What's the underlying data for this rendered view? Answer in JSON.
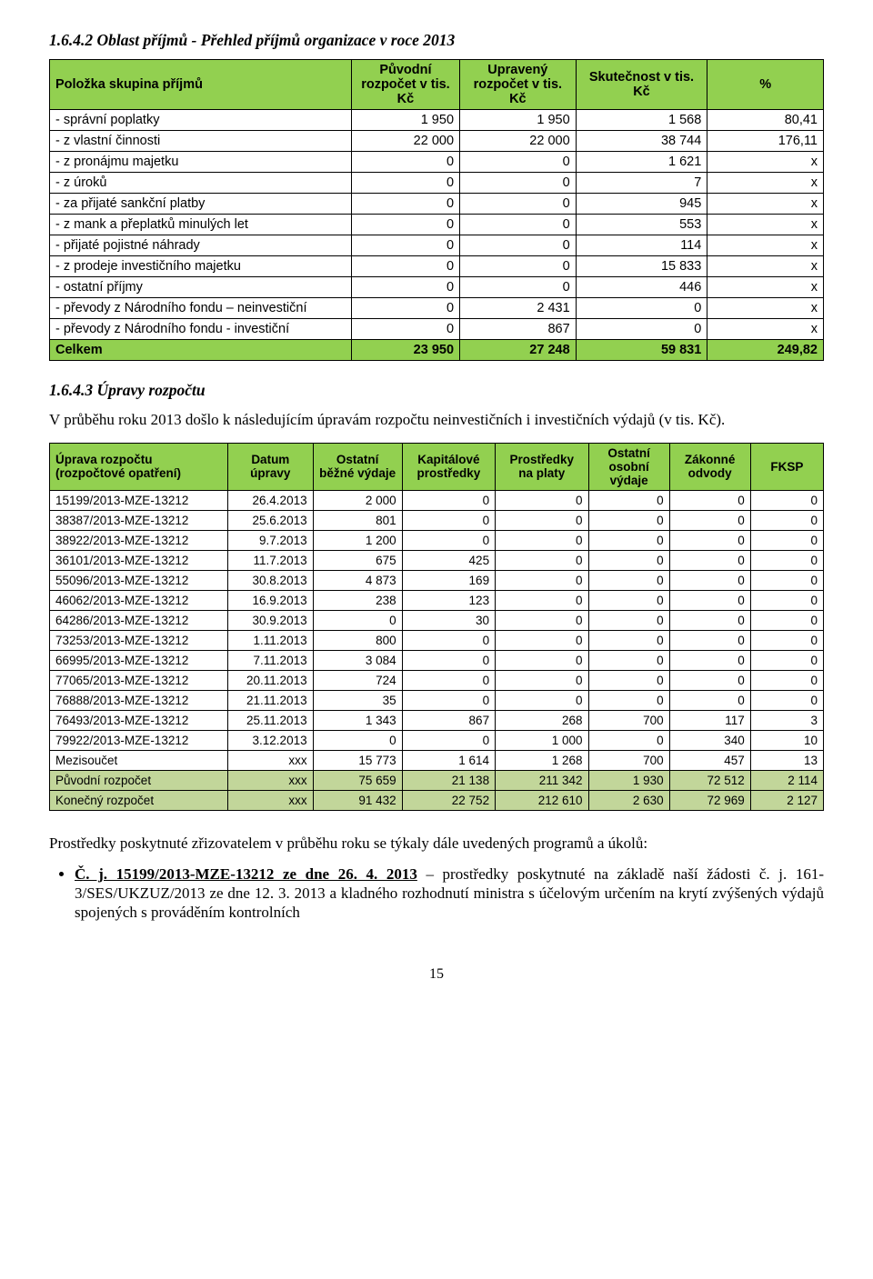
{
  "section1": {
    "heading": "1.6.4.2 Oblast příjmů - Přehled příjmů organizace v roce 2013",
    "table": {
      "columns": [
        "Položka skupina příjmů",
        "Původní rozpočet v tis. Kč",
        "Upravený rozpočet v tis. Kč",
        "Skutečnost v tis. Kč",
        "%"
      ],
      "rows": [
        {
          "label": "- správní poplatky",
          "v": [
            "1 950",
            "1 950",
            "1 568",
            "80,41"
          ]
        },
        {
          "label": "- z vlastní činnosti",
          "v": [
            "22 000",
            "22 000",
            "38 744",
            "176,11"
          ]
        },
        {
          "label": "- z pronájmu majetku",
          "v": [
            "0",
            "0",
            "1 621",
            "x"
          ]
        },
        {
          "label": "- z úroků",
          "v": [
            "0",
            "0",
            "7",
            "x"
          ]
        },
        {
          "label": "- za přijaté sankční platby",
          "v": [
            "0",
            "0",
            "945",
            "x"
          ]
        },
        {
          "label": "- z mank a přeplatků minulých let",
          "v": [
            "0",
            "0",
            "553",
            "x"
          ]
        },
        {
          "label": "- přijaté pojistné náhrady",
          "v": [
            "0",
            "0",
            "114",
            "x"
          ]
        },
        {
          "label": "- z prodeje investičního majetku",
          "v": [
            "0",
            "0",
            "15 833",
            "x"
          ]
        },
        {
          "label": "- ostatní příjmy",
          "v": [
            "0",
            "0",
            "446",
            "x"
          ]
        },
        {
          "label": "-  převody z Národního fondu – neinvestiční",
          "v": [
            "0",
            "2 431",
            "0",
            "x"
          ]
        },
        {
          "label": "-  převody z Národního fondu - investiční",
          "v": [
            "0",
            "867",
            "0",
            "x"
          ]
        }
      ],
      "total": {
        "label": "Celkem",
        "v": [
          "23 950",
          "27 248",
          "59 831",
          "249,82"
        ]
      }
    }
  },
  "section2": {
    "heading": "1.6.4.3 Úpravy rozpočtu",
    "intro": "V průběhu roku 2013 došlo k následujícím úpravám rozpočtu neinvestičních i investičních výdajů (v tis. Kč).",
    "table": {
      "columns": [
        "Úprava rozpočtu (rozpočtové opatření)",
        "Datum úpravy",
        "Ostatní běžné výdaje",
        "Kapitálové prostředky",
        "Prostředky na platy",
        "Ostatní osobní výdaje",
        "Zákonné odvody",
        "FKSP"
      ],
      "rows": [
        {
          "c": [
            "15199/2013-MZE-13212",
            "26.4.2013",
            "2 000",
            "0",
            "0",
            "0",
            "0",
            "0"
          ]
        },
        {
          "c": [
            "38387/2013-MZE-13212",
            "25.6.2013",
            "801",
            "0",
            "0",
            "0",
            "0",
            "0"
          ]
        },
        {
          "c": [
            "38922/2013-MZE-13212",
            "9.7.2013",
            "1 200",
            "0",
            "0",
            "0",
            "0",
            "0"
          ]
        },
        {
          "c": [
            "36101/2013-MZE-13212",
            "11.7.2013",
            "675",
            "425",
            "0",
            "0",
            "0",
            "0"
          ]
        },
        {
          "c": [
            "55096/2013-MZE-13212",
            "30.8.2013",
            "4 873",
            "169",
            "0",
            "0",
            "0",
            "0"
          ]
        },
        {
          "c": [
            "46062/2013-MZE-13212",
            "16.9.2013",
            "238",
            "123",
            "0",
            "0",
            "0",
            "0"
          ]
        },
        {
          "c": [
            "64286/2013-MZE-13212",
            "30.9.2013",
            "0",
            "30",
            "0",
            "0",
            "0",
            "0"
          ]
        },
        {
          "c": [
            "73253/2013-MZE-13212",
            "1.11.2013",
            "800",
            "0",
            "0",
            "0",
            "0",
            "0"
          ]
        },
        {
          "c": [
            "66995/2013-MZE-13212",
            "7.11.2013",
            "3 084",
            "0",
            "0",
            "0",
            "0",
            "0"
          ]
        },
        {
          "c": [
            "77065/2013-MZE-13212",
            "20.11.2013",
            "724",
            "0",
            "0",
            "0",
            "0",
            "0"
          ]
        },
        {
          "c": [
            "76888/2013-MZE-13212",
            "21.11.2013",
            "35",
            "0",
            "0",
            "0",
            "0",
            "0"
          ]
        },
        {
          "c": [
            "76493/2013-MZE-13212",
            "25.11.2013",
            "1 343",
            "867",
            "268",
            "700",
            "117",
            "3"
          ]
        },
        {
          "c": [
            "79922/2013-MZE-13212",
            "3.12.2013",
            "0",
            "0",
            "1 000",
            "0",
            "340",
            "10"
          ]
        }
      ],
      "subtotal": {
        "c": [
          "Mezisoučet",
          "xxx",
          "15 773",
          "1 614",
          "1 268",
          "700",
          "457",
          "13"
        ]
      },
      "orig": {
        "c": [
          "Původní rozpočet",
          "xxx",
          "75 659",
          "21 138",
          "211 342",
          "1 930",
          "72 512",
          "2 114"
        ]
      },
      "final": {
        "c": [
          "Konečný rozpočet",
          "xxx",
          "91 432",
          "22 752",
          "212 610",
          "2 630",
          "72 969",
          "2 127"
        ]
      }
    }
  },
  "para2": "Prostředky poskytnuté zřizovatelem v průběhu roku se týkaly dále uvedených programů a úkolů:",
  "bullet1_pre": "Č. j. 15199/2013-MZE-13212 ze dne 26. 4. 2013",
  "bullet1_post": " – prostředky poskytnuté na základě naší žádosti č. j. 161-3/SES/UKZUZ/2013 ze dne 12. 3. 2013 a kladného rozhodnutí ministra s účelovým určením na krytí zvýšených výdajů spojených s prováděním kontrolních",
  "pagenum": "15"
}
